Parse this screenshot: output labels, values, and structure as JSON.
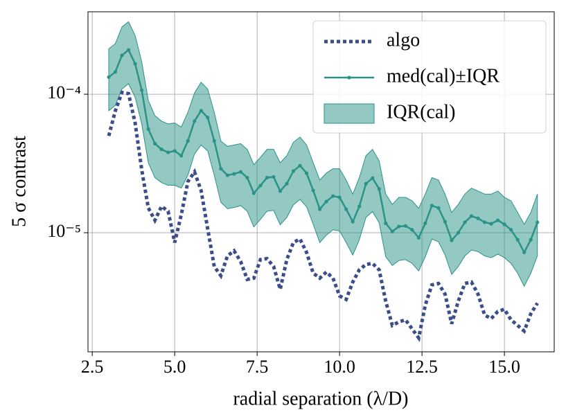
{
  "chart_data": {
    "type": "line",
    "xlabel": "radial separation (λ/D)",
    "ylabel": "5 σ contrast",
    "log_y": true,
    "grid": true,
    "legend": "upper right",
    "xlim": [
      2.37,
      16.51
    ],
    "ylim": [
      1.38e-06,
      0.000394
    ],
    "xticks": [
      2.5,
      {
        "value": 5,
        "label": "5.0"
      },
      7.5,
      {
        "value": 10,
        "label": "10.0"
      },
      12.5,
      {
        "value": 15,
        "label": "15.0"
      }
    ],
    "yticks": [
      {
        "value": 1e-05,
        "label": "10⁻⁵"
      },
      {
        "value": 0.0001,
        "label": "10⁻⁴"
      }
    ],
    "x": [
      3.0,
      3.2,
      3.4,
      3.6,
      3.8,
      4.0,
      4.2,
      4.4,
      4.6,
      4.8,
      5.0,
      5.2,
      5.4,
      5.6,
      5.8,
      6.0,
      6.2,
      6.4,
      6.6,
      6.8,
      7.0,
      7.2,
      7.4,
      7.6,
      7.8,
      8.0,
      8.2,
      8.4,
      8.6,
      8.8,
      9.0,
      9.2,
      9.4,
      9.6,
      9.8,
      10.0,
      10.2,
      10.4,
      10.6,
      10.8,
      11.0,
      11.2,
      11.4,
      11.6,
      11.8,
      12.0,
      12.2,
      12.4,
      12.6,
      12.8,
      13.0,
      13.2,
      13.4,
      13.6,
      13.8,
      14.0,
      14.2,
      14.4,
      14.6,
      14.8,
      15.0,
      15.2,
      15.4,
      15.6,
      15.8,
      16.0
    ],
    "series": [
      {
        "name": "algo",
        "color": "#3b4d8a",
        "style": "dotted",
        "values": [
          5e-05,
          7.6e-05,
          0.000103,
          0.000101,
          6.2e-05,
          2.85e-05,
          1.51e-05,
          1.23e-05,
          1.55e-05,
          1.43e-05,
          8.5e-06,
          1.35e-05,
          2.34e-05,
          2.75e-05,
          2.02e-05,
          1.07e-05,
          5.7e-06,
          4.9e-06,
          6.8e-06,
          7.4e-06,
          6.2e-06,
          4.6e-06,
          4.7e-06,
          6.4e-06,
          6.5e-06,
          5.7e-06,
          3.9e-06,
          6.4e-06,
          8.5e-06,
          9e-06,
          7.2e-06,
          5.1e-06,
          4.7e-06,
          5.2e-06,
          4.7e-06,
          3.5e-06,
          3.3e-06,
          4.4e-06,
          5.4e-06,
          5.9e-06,
          6e-06,
          5.4e-06,
          3.2e-06,
          2.14e-06,
          2.27e-06,
          2.35e-06,
          2.02e-06,
          1.74e-06,
          3e-06,
          4.2e-06,
          4.3e-06,
          3.6e-06,
          2.2e-06,
          3.2e-06,
          4.3e-06,
          4.4e-06,
          3.6e-06,
          2.54e-06,
          2.4e-06,
          2.7e-06,
          2.8e-06,
          2.35e-06,
          2.14e-06,
          1.95e-06,
          2.6e-06,
          3.1e-06
        ]
      },
      {
        "name": "med(cal)±IQR",
        "color": "#2a9287",
        "style": "solid-markers",
        "values": [
          0.000133,
          0.000145,
          0.000191,
          0.000209,
          0.000166,
          0.000107,
          5.6e-05,
          4.4e-05,
          4e-05,
          3.8e-05,
          3.9e-05,
          3.6e-05,
          4.6e-05,
          6.4e-05,
          7.6e-05,
          6.8e-05,
          4.6e-05,
          2.9e-05,
          2.6e-05,
          2.66e-05,
          2.75e-05,
          2.5e-05,
          1.93e-05,
          2.19e-05,
          2.5e-05,
          2.53e-05,
          2e-05,
          2.26e-05,
          2.79e-05,
          3.05e-05,
          2.69e-05,
          2.02e-05,
          1.48e-05,
          1.68e-05,
          1.84e-05,
          1.8e-05,
          1.48e-05,
          1.2e-05,
          1.55e-05,
          2.26e-05,
          2.48e-05,
          2.07e-05,
          1.17e-05,
          1.02e-05,
          1.11e-05,
          1.12e-05,
          1.05e-05,
          9.2e-06,
          1.17e-05,
          1.57e-05,
          1.51e-05,
          1.2e-05,
          8.8e-06,
          1e-05,
          1.19e-05,
          1.32e-05,
          1.27e-05,
          1.19e-05,
          1.16e-05,
          1.23e-05,
          1.15e-05,
          1.05e-05,
          8.9e-06,
          7.2e-06,
          8.9e-06,
          1.19e-05
        ]
      },
      {
        "name": "IQR(cal)",
        "color": "#2a9287",
        "style": "band",
        "upper": [
          0.000213,
          0.000232,
          0.000306,
          0.000334,
          0.000266,
          0.000171,
          9e-05,
          7e-05,
          6.4e-05,
          6.1e-05,
          6.2e-05,
          5.8e-05,
          7.4e-05,
          0.000102,
          0.000122,
          0.000109,
          7.4e-05,
          4.6e-05,
          4.2e-05,
          4.3e-05,
          4.4e-05,
          4e-05,
          3.1e-05,
          3.5e-05,
          4e-05,
          4e-05,
          3.2e-05,
          3.6e-05,
          4.5e-05,
          4.9e-05,
          4.3e-05,
          3.2e-05,
          2.4e-05,
          2.7e-05,
          2.9e-05,
          2.9e-05,
          2.4e-05,
          1.9e-05,
          2.5e-05,
          3.6e-05,
          4e-05,
          3.3e-05,
          1.9e-05,
          1.6e-05,
          1.8e-05,
          1.8e-05,
          1.7e-05,
          1.5e-05,
          1.9e-05,
          2.5e-05,
          2.4e-05,
          1.9e-05,
          1.4e-05,
          1.6e-05,
          1.9e-05,
          2.1e-05,
          2e-05,
          1.9e-05,
          1.9e-05,
          2e-05,
          1.8e-05,
          1.7e-05,
          1.4e-05,
          1.15e-05,
          1.4e-05,
          1.9e-05
        ],
        "lower": [
          7.6e-05,
          8.3e-05,
          0.000109,
          0.000119,
          9.5e-05,
          6.1e-05,
          3.2e-05,
          2.5e-05,
          2.3e-05,
          2.2e-05,
          2.2e-05,
          2.1e-05,
          2.6e-05,
          3.7e-05,
          4.3e-05,
          3.9e-05,
          2.6e-05,
          1.66e-05,
          1.49e-05,
          1.52e-05,
          1.57e-05,
          1.43e-05,
          1.1e-05,
          1.25e-05,
          1.43e-05,
          1.45e-05,
          1.14e-05,
          1.29e-05,
          1.59e-05,
          1.74e-05,
          1.54e-05,
          1.15e-05,
          8.5e-06,
          9.6e-06,
          1.05e-05,
          1.03e-05,
          8.5e-06,
          6.9e-06,
          8.9e-06,
          1.29e-05,
          1.42e-05,
          1.18e-05,
          6.7e-06,
          5.8e-06,
          6.3e-06,
          6.4e-06,
          6e-06,
          5.3e-06,
          6.7e-06,
          9e-06,
          8.6e-06,
          6.9e-06,
          5e-06,
          5.7e-06,
          6.8e-06,
          7.5e-06,
          7.3e-06,
          6.8e-06,
          6.6e-06,
          7e-06,
          6.6e-06,
          6e-06,
          5.1e-06,
          4.1e-06,
          5.1e-06,
          6.8e-06
        ]
      }
    ]
  }
}
